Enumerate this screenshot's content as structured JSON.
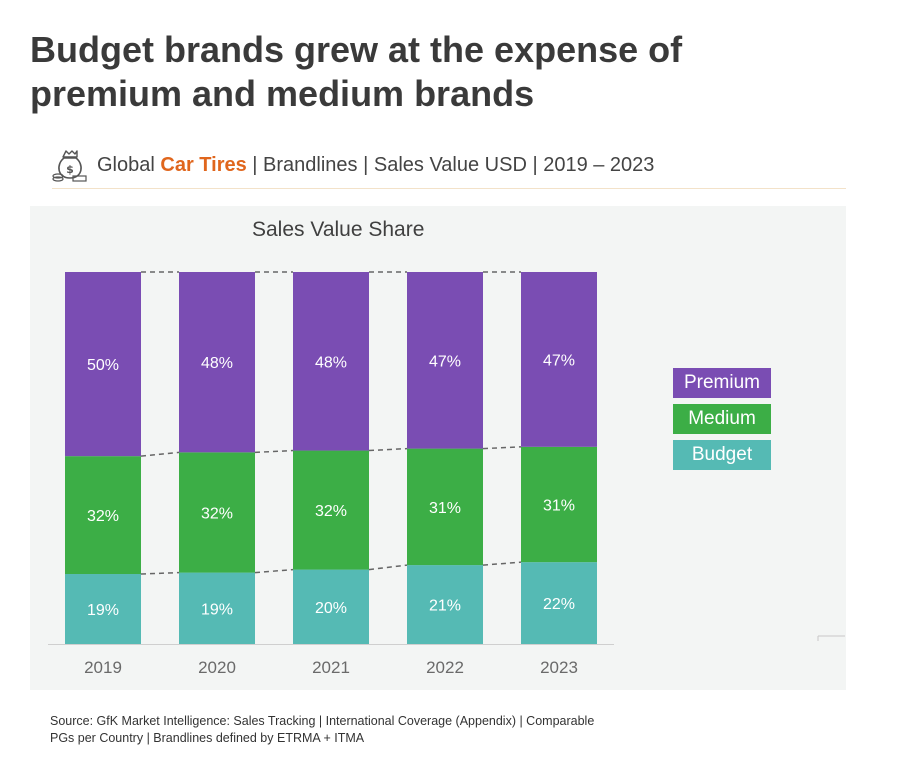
{
  "title": "Budget brands grew at the expense of premium and medium brands",
  "subtitle": {
    "prefix": "Global ",
    "accent": "Car Tires",
    "suffix": " | Brandlines | Sales Value USD | 2019 – 2023",
    "icon": "money-bag-icon"
  },
  "legend": {
    "premium": "Premium",
    "medium": "Medium",
    "budget": "Budget"
  },
  "colors": {
    "premium": "#7a4db3",
    "medium": "#3cae46",
    "budget": "#55bab4",
    "accent": "#e0661d",
    "panel": "#f3f5f4"
  },
  "source": "Source: GfK Market Intelligence: Sales Tracking | International Coverage (Appendix) | Comparable PGs per Country | Brandlines defined by ETRMA + ITMA",
  "chart_data": {
    "type": "bar",
    "stacked": true,
    "title": "Sales Value Share",
    "categories": [
      "2019",
      "2020",
      "2021",
      "2022",
      "2023"
    ],
    "series": [
      {
        "name": "Budget",
        "values": [
          19,
          19,
          20,
          21,
          22
        ],
        "labels": [
          "19%",
          "19%",
          "20%",
          "21%",
          "22%"
        ],
        "color": "#55bab4"
      },
      {
        "name": "Medium",
        "values": [
          32,
          32,
          32,
          31,
          31
        ],
        "labels": [
          "32%",
          "32%",
          "32%",
          "31%",
          "31%"
        ],
        "color": "#3cae46"
      },
      {
        "name": "Premium",
        "values": [
          50,
          48,
          48,
          47,
          47
        ],
        "labels": [
          "50%",
          "48%",
          "48%",
          "47%",
          "47%"
        ],
        "color": "#7a4db3"
      }
    ],
    "ylim": [
      0,
      100
    ],
    "legend_position": "right",
    "connector_lines": true,
    "grid": false
  }
}
